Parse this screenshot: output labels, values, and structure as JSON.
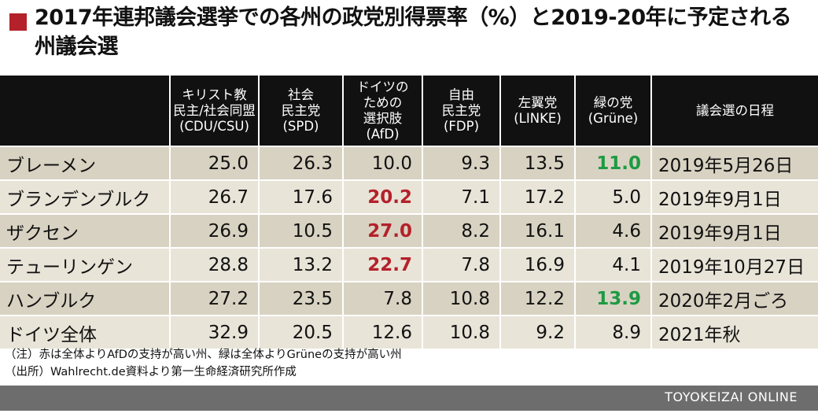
{
  "title": "2017年連邦議会選挙での各州の政党別得票率（%）と2019-20年に予定される州議会選",
  "colors": {
    "accent": "#b4212a",
    "header_bg": "#111111",
    "row_bg": "#d8d2c2",
    "row_bg_alt": "#e9e4d8",
    "highlight_red": "#b4212a",
    "highlight_green": "#1e9a43",
    "footer_bg": "#6d6d6d"
  },
  "chart_data": {
    "type": "table",
    "columns": [
      {
        "label": [
          "キリスト教",
          "民主/社会同盟",
          "(CDU/CSU)"
        ]
      },
      {
        "label": [
          "社会",
          "民主党",
          "(SPD)"
        ]
      },
      {
        "label": [
          "ドイツの",
          "ための",
          "選択肢",
          "(AfD)"
        ]
      },
      {
        "label": [
          "自由",
          "民主党",
          "(FDP)"
        ]
      },
      {
        "label": [
          "左翼党",
          "(LINKE)"
        ]
      },
      {
        "label": [
          "緑の党",
          "(Grüne)"
        ]
      },
      {
        "label": [
          "議会選の日程"
        ]
      }
    ],
    "rows": [
      {
        "name": "ブレーメン",
        "values": [
          "25.0",
          "26.3",
          "10.0",
          "9.3",
          "13.5",
          "11.0"
        ],
        "date": "2019年5月26日",
        "highlights": {
          "5": "green"
        }
      },
      {
        "name": "ブランデンブルク",
        "values": [
          "26.7",
          "17.6",
          "20.2",
          "7.1",
          "17.2",
          "5.0"
        ],
        "date": "2019年9月1日",
        "highlights": {
          "2": "red"
        }
      },
      {
        "name": "ザクセン",
        "values": [
          "26.9",
          "10.5",
          "27.0",
          "8.2",
          "16.1",
          "4.6"
        ],
        "date": "2019年9月1日",
        "highlights": {
          "2": "red"
        }
      },
      {
        "name": "テューリンゲン",
        "values": [
          "28.8",
          "13.2",
          "22.7",
          "7.8",
          "16.9",
          "4.1"
        ],
        "date": "2019年10月27日",
        "highlights": {
          "2": "red"
        }
      },
      {
        "name": "ハンブルク",
        "values": [
          "27.2",
          "23.5",
          "7.8",
          "10.8",
          "12.2",
          "13.9"
        ],
        "date": "2020年2月ごろ",
        "highlights": {
          "5": "green"
        }
      },
      {
        "name": "ドイツ全体",
        "values": [
          "32.9",
          "20.5",
          "12.6",
          "10.8",
          "9.2",
          "8.9"
        ],
        "date": "2021年秋",
        "highlights": {}
      }
    ]
  },
  "notes": [
    "（注）赤は全体よりAfDの支持が高い州、緑は全体よりGrüneの支持が高い州",
    "（出所）Wahlrecht.de資料より第一生命経済研究所作成"
  ],
  "footer": "TOYOKEIZAI  ONLINE"
}
